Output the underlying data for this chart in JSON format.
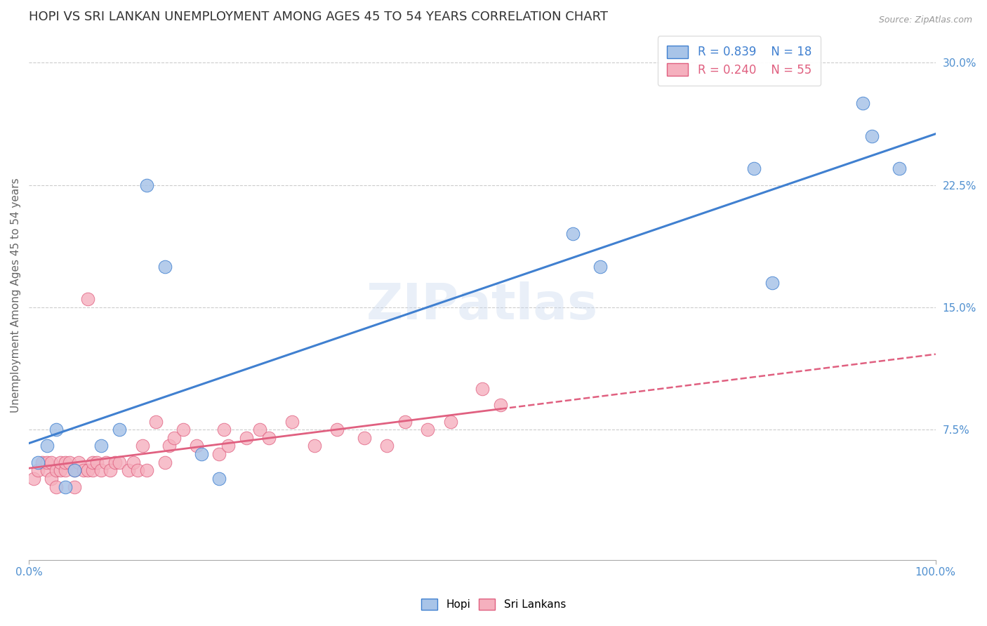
{
  "title": "HOPI VS SRI LANKAN UNEMPLOYMENT AMONG AGES 45 TO 54 YEARS CORRELATION CHART",
  "source": "Source: ZipAtlas.com",
  "ylabel": "Unemployment Among Ages 45 to 54 years",
  "xlim": [
    0.0,
    1.0
  ],
  "ylim": [
    -0.005,
    0.32
  ],
  "yticks": [
    0.0,
    0.075,
    0.15,
    0.225,
    0.3
  ],
  "ytick_labels": [
    "",
    "7.5%",
    "15.0%",
    "22.5%",
    "30.0%"
  ],
  "hopi_R": 0.839,
  "hopi_N": 18,
  "sri_R": 0.24,
  "sri_N": 55,
  "hopi_color": "#a8c4e8",
  "sri_color": "#f5b0be",
  "hopi_line_color": "#4080d0",
  "sri_line_color": "#e06080",
  "hopi_scatter_x": [
    0.01,
    0.02,
    0.03,
    0.04,
    0.05,
    0.08,
    0.1,
    0.13,
    0.15,
    0.19,
    0.21,
    0.6,
    0.63,
    0.8,
    0.82,
    0.92,
    0.93,
    0.96
  ],
  "hopi_scatter_y": [
    0.055,
    0.065,
    0.075,
    0.04,
    0.05,
    0.065,
    0.075,
    0.225,
    0.175,
    0.06,
    0.045,
    0.195,
    0.175,
    0.235,
    0.165,
    0.275,
    0.255,
    0.235
  ],
  "sri_scatter_x": [
    0.005,
    0.01,
    0.015,
    0.02,
    0.02,
    0.025,
    0.025,
    0.03,
    0.03,
    0.035,
    0.035,
    0.04,
    0.04,
    0.045,
    0.05,
    0.05,
    0.055,
    0.06,
    0.065,
    0.065,
    0.07,
    0.07,
    0.075,
    0.08,
    0.085,
    0.09,
    0.095,
    0.1,
    0.11,
    0.115,
    0.12,
    0.125,
    0.13,
    0.14,
    0.15,
    0.155,
    0.16,
    0.17,
    0.185,
    0.21,
    0.215,
    0.22,
    0.24,
    0.255,
    0.265,
    0.29,
    0.315,
    0.34,
    0.37,
    0.395,
    0.415,
    0.44,
    0.465,
    0.5,
    0.52
  ],
  "sri_scatter_y": [
    0.045,
    0.05,
    0.055,
    0.05,
    0.055,
    0.045,
    0.055,
    0.04,
    0.05,
    0.05,
    0.055,
    0.05,
    0.055,
    0.055,
    0.04,
    0.05,
    0.055,
    0.05,
    0.05,
    0.155,
    0.05,
    0.055,
    0.055,
    0.05,
    0.055,
    0.05,
    0.055,
    0.055,
    0.05,
    0.055,
    0.05,
    0.065,
    0.05,
    0.08,
    0.055,
    0.065,
    0.07,
    0.075,
    0.065,
    0.06,
    0.075,
    0.065,
    0.07,
    0.075,
    0.07,
    0.08,
    0.065,
    0.075,
    0.07,
    0.065,
    0.08,
    0.075,
    0.08,
    0.1,
    0.09
  ],
  "watermark_text": "ZIPatlas",
  "title_fontsize": 13,
  "label_fontsize": 11,
  "legend_fontsize": 12,
  "tick_color": "#5090d0"
}
